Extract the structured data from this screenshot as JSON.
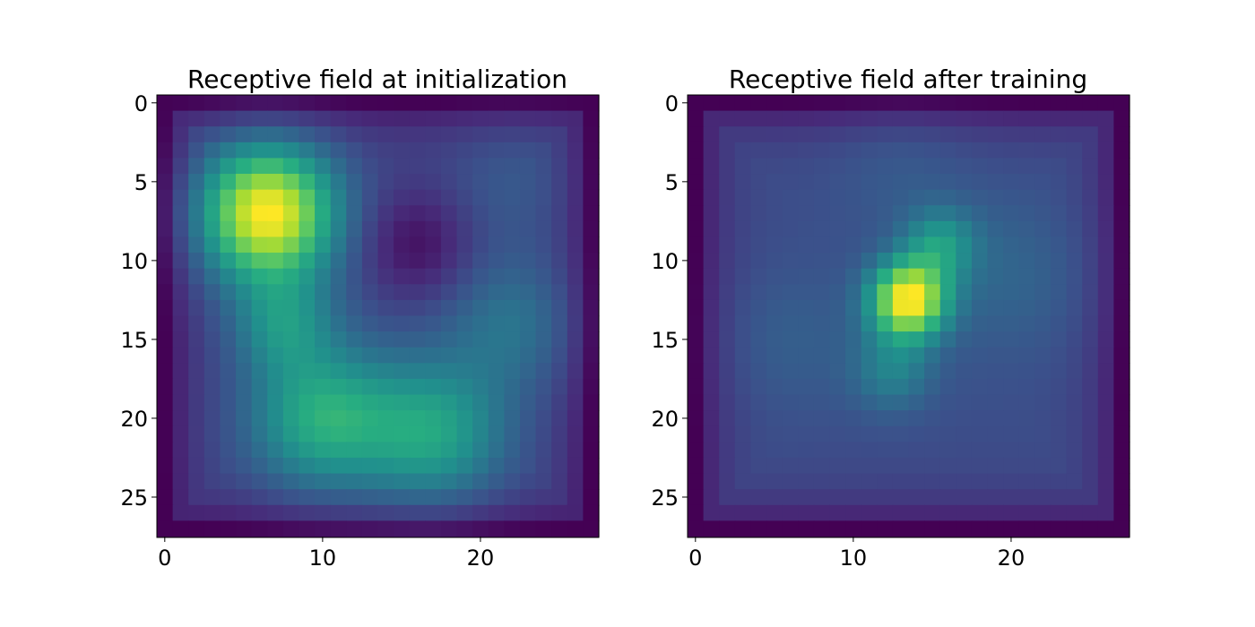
{
  "chart_data": [
    {
      "type": "heatmap",
      "title": "Receptive field at initialization",
      "grid_size": 28,
      "xticks": [
        0,
        10,
        20
      ],
      "yticks": [
        0,
        5,
        10,
        15,
        20,
        25
      ],
      "colormap": "viridis",
      "value_range": [
        0,
        1
      ],
      "xlim": [
        -0.5,
        27.5
      ],
      "ylim": [
        27.5,
        -0.5
      ],
      "base_level": 0.55,
      "edge_falloff": 0.15,
      "blobs": [
        {
          "x": 6.5,
          "y": 7.0,
          "amp": 0.55,
          "sigma": 3.0
        },
        {
          "x": 10.0,
          "y": 20.0,
          "amp": 0.28,
          "sigma": 3.2
        },
        {
          "x": 17.0,
          "y": 21.0,
          "amp": 0.25,
          "sigma": 3.2
        },
        {
          "x": 7.5,
          "y": 14.0,
          "amp": 0.18,
          "sigma": 2.2
        },
        {
          "x": 22.0,
          "y": 14.0,
          "amp": 0.12,
          "sigma": 3.0
        },
        {
          "x": 22.0,
          "y": 5.0,
          "amp": 0.05,
          "sigma": 3.0
        },
        {
          "x": 16.0,
          "y": 9.0,
          "amp": -0.12,
          "sigma": 2.5
        }
      ]
    },
    {
      "type": "heatmap",
      "title": "Receptive field after training",
      "grid_size": 28,
      "xticks": [
        0,
        10,
        20
      ],
      "yticks": [
        0,
        5,
        10,
        15,
        20,
        25
      ],
      "colormap": "viridis",
      "value_range": [
        0,
        1
      ],
      "xlim": [
        -0.5,
        27.5
      ],
      "ylim": [
        27.5,
        -0.5
      ],
      "base_level": 0.28,
      "edge_falloff": 0.22,
      "blobs": [
        {
          "x": 13.5,
          "y": 12.5,
          "amp": 0.7,
          "sigma": 1.7
        },
        {
          "x": 15.5,
          "y": 9.0,
          "amp": 0.25,
          "sigma": 1.6
        },
        {
          "x": 12.5,
          "y": 17.0,
          "amp": 0.18,
          "sigma": 1.8
        },
        {
          "x": 20.0,
          "y": 11.0,
          "amp": 0.08,
          "sigma": 3.5
        },
        {
          "x": 6.0,
          "y": 15.0,
          "amp": 0.06,
          "sigma": 3.0
        },
        {
          "x": 13.0,
          "y": 4.0,
          "amp": 0.05,
          "sigma": 3.0
        }
      ]
    }
  ]
}
